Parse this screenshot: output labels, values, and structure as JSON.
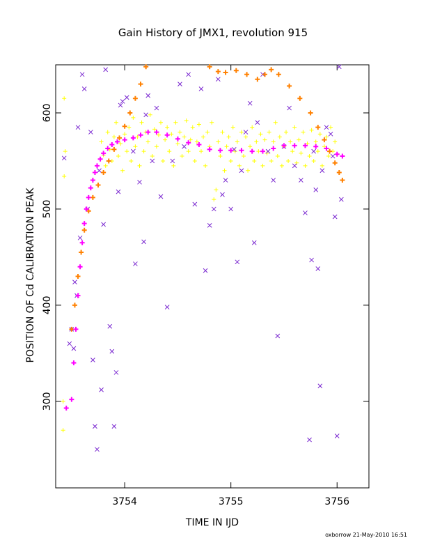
{
  "chart_data": {
    "type": "scatter",
    "title": "Gain History of JMX1, revolution 915",
    "xlabel": "TIME IN IJD",
    "ylabel": "POSITION OF Cd CALIBRATION PEAK",
    "xlim": [
      3753.35,
      3756.3
    ],
    "ylim": [
      210,
      650
    ],
    "x_ticks": [
      3754,
      3755,
      3756
    ],
    "y_ticks": [
      300,
      400,
      500,
      600
    ],
    "footer": "oxborrow 21-May-2010 16:51",
    "grid": false,
    "colors": {
      "yellow_series": "#ffff00",
      "magenta_series": "#ff00ff",
      "orange_series": "#ff8000",
      "purple_series": "#7a28d0"
    },
    "series": [
      {
        "key": "magenta",
        "marker": "plus",
        "values": [
          [
            3753.45,
            293
          ],
          [
            3753.5,
            302
          ],
          [
            3753.52,
            340
          ],
          [
            3753.54,
            375
          ],
          [
            3753.56,
            410
          ],
          [
            3753.58,
            440
          ],
          [
            3753.6,
            465
          ],
          [
            3753.62,
            485
          ],
          [
            3753.64,
            500
          ],
          [
            3753.66,
            512
          ],
          [
            3753.68,
            522
          ],
          [
            3753.7,
            530
          ],
          [
            3753.72,
            538
          ],
          [
            3753.74,
            545
          ],
          [
            3753.77,
            552
          ],
          [
            3753.8,
            558
          ],
          [
            3753.84,
            563
          ],
          [
            3753.88,
            567
          ],
          [
            3753.93,
            570
          ],
          [
            3754.0,
            572
          ],
          [
            3754.08,
            574
          ],
          [
            3754.15,
            577
          ],
          [
            3754.22,
            580
          ],
          [
            3754.3,
            580
          ],
          [
            3754.4,
            577
          ],
          [
            3754.5,
            573
          ],
          [
            3754.6,
            569
          ],
          [
            3754.7,
            567
          ],
          [
            3754.8,
            562
          ],
          [
            3754.9,
            561
          ],
          [
            3755.0,
            561
          ],
          [
            3755.1,
            561
          ],
          [
            3755.2,
            560
          ],
          [
            3755.3,
            560
          ],
          [
            3755.4,
            563
          ],
          [
            3755.5,
            566
          ],
          [
            3755.6,
            566
          ],
          [
            3755.7,
            566
          ],
          [
            3755.8,
            565
          ],
          [
            3755.9,
            563
          ],
          [
            3756.0,
            557
          ],
          [
            3756.05,
            555
          ]
        ]
      },
      {
        "key": "orange",
        "marker": "plus",
        "values": [
          [
            3753.5,
            375
          ],
          [
            3753.53,
            400
          ],
          [
            3753.56,
            430
          ],
          [
            3753.59,
            455
          ],
          [
            3753.62,
            478
          ],
          [
            3753.66,
            498
          ],
          [
            3753.7,
            512
          ],
          [
            3753.75,
            525
          ],
          [
            3753.8,
            538
          ],
          [
            3753.85,
            550
          ],
          [
            3753.9,
            562
          ],
          [
            3753.95,
            574
          ],
          [
            3754.0,
            586
          ],
          [
            3754.05,
            600
          ],
          [
            3754.1,
            615
          ],
          [
            3754.15,
            630
          ],
          [
            3754.2,
            648
          ],
          [
            3754.8,
            648
          ],
          [
            3754.88,
            643
          ],
          [
            3754.95,
            642
          ],
          [
            3755.05,
            644
          ],
          [
            3755.15,
            640
          ],
          [
            3755.25,
            635
          ],
          [
            3755.32,
            640
          ],
          [
            3755.38,
            645
          ],
          [
            3755.45,
            640
          ],
          [
            3755.55,
            628
          ],
          [
            3755.65,
            615
          ],
          [
            3755.75,
            600
          ],
          [
            3755.82,
            585
          ],
          [
            3755.88,
            572
          ],
          [
            3755.93,
            560
          ],
          [
            3755.98,
            548
          ],
          [
            3756.02,
            538
          ],
          [
            3756.05,
            530
          ]
        ]
      },
      {
        "key": "yellow",
        "marker": "plus",
        "values": [
          [
            3753.42,
            270
          ],
          [
            3753.42,
            300
          ],
          [
            3753.43,
            534
          ],
          [
            3753.44,
            560
          ],
          [
            3753.43,
            615
          ],
          [
            3753.78,
            570
          ],
          [
            3753.8,
            556
          ],
          [
            3753.82,
            545
          ],
          [
            3753.84,
            580
          ],
          [
            3753.86,
            562
          ],
          [
            3753.88,
            550
          ],
          [
            3753.9,
            575
          ],
          [
            3753.92,
            590
          ],
          [
            3753.94,
            555
          ],
          [
            3753.96,
            568
          ],
          [
            3753.98,
            540
          ],
          [
            3754.0,
            578
          ],
          [
            3754.02,
            560
          ],
          [
            3754.04,
            585
          ],
          [
            3754.06,
            550
          ],
          [
            3754.08,
            595
          ],
          [
            3754.1,
            565
          ],
          [
            3754.12,
            575
          ],
          [
            3754.14,
            545
          ],
          [
            3754.16,
            590
          ],
          [
            3754.18,
            560
          ],
          [
            3754.2,
            580
          ],
          [
            3754.22,
            570
          ],
          [
            3754.24,
            598
          ],
          [
            3754.26,
            555
          ],
          [
            3754.28,
            583
          ],
          [
            3754.3,
            565
          ],
          [
            3754.32,
            577
          ],
          [
            3754.34,
            590
          ],
          [
            3754.36,
            550
          ],
          [
            3754.38,
            572
          ],
          [
            3754.4,
            585
          ],
          [
            3754.42,
            560
          ],
          [
            3754.44,
            578
          ],
          [
            3754.46,
            545
          ],
          [
            3754.48,
            590
          ],
          [
            3754.5,
            568
          ],
          [
            3754.52,
            580
          ],
          [
            3754.54,
            555
          ],
          [
            3754.56,
            575
          ],
          [
            3754.58,
            592
          ],
          [
            3754.6,
            560
          ],
          [
            3754.62,
            572
          ],
          [
            3754.64,
            585
          ],
          [
            3754.66,
            550
          ],
          [
            3754.68,
            570
          ],
          [
            3754.7,
            588
          ],
          [
            3754.72,
            560
          ],
          [
            3754.74,
            575
          ],
          [
            3754.76,
            545
          ],
          [
            3754.78,
            580
          ],
          [
            3754.8,
            565
          ],
          [
            3754.82,
            590
          ],
          [
            3754.84,
            510
          ],
          [
            3754.86,
            520
          ],
          [
            3754.88,
            570
          ],
          [
            3754.9,
            555
          ],
          [
            3754.92,
            580
          ],
          [
            3754.94,
            540
          ],
          [
            3754.96,
            565
          ],
          [
            3754.98,
            575
          ],
          [
            3755.0,
            550
          ],
          [
            3755.02,
            585
          ],
          [
            3755.04,
            560
          ],
          [
            3755.06,
            570
          ],
          [
            3755.08,
            545
          ],
          [
            3755.1,
            580
          ],
          [
            3755.12,
            555
          ],
          [
            3755.14,
            575
          ],
          [
            3755.16,
            540
          ],
          [
            3755.18,
            565
          ],
          [
            3755.2,
            585
          ],
          [
            3755.22,
            550
          ],
          [
            3755.24,
            570
          ],
          [
            3755.26,
            560
          ],
          [
            3755.28,
            578
          ],
          [
            3755.3,
            545
          ],
          [
            3755.32,
            572
          ],
          [
            3755.34,
            558
          ],
          [
            3755.36,
            580
          ],
          [
            3755.38,
            550
          ],
          [
            3755.4,
            570
          ],
          [
            3755.42,
            590
          ],
          [
            3755.44,
            555
          ],
          [
            3755.46,
            575
          ],
          [
            3755.48,
            545
          ],
          [
            3755.5,
            565
          ],
          [
            3755.52,
            580
          ],
          [
            3755.54,
            550
          ],
          [
            3755.56,
            570
          ],
          [
            3755.58,
            560
          ],
          [
            3755.6,
            585
          ],
          [
            3755.62,
            548
          ],
          [
            3755.64,
            572
          ],
          [
            3755.66,
            558
          ],
          [
            3755.68,
            580
          ],
          [
            3755.7,
            545
          ],
          [
            3755.72,
            568
          ],
          [
            3755.74,
            555
          ],
          [
            3755.76,
            582
          ],
          [
            3755.78,
            550
          ],
          [
            3755.8,
            570
          ],
          [
            3755.82,
            560
          ],
          [
            3755.84,
            578
          ],
          [
            3755.86,
            545
          ],
          [
            3755.88,
            565
          ],
          [
            3755.9,
            575
          ],
          [
            3755.92,
            555
          ],
          [
            3755.94,
            585
          ],
          [
            3755.96,
            560
          ],
          [
            3755.98,
            570
          ]
        ]
      },
      {
        "key": "purple",
        "marker": "x",
        "values": [
          [
            3753.43,
            553
          ],
          [
            3753.48,
            360
          ],
          [
            3753.5,
            375
          ],
          [
            3753.52,
            355
          ],
          [
            3753.53,
            424
          ],
          [
            3753.55,
            410
          ],
          [
            3753.56,
            585
          ],
          [
            3753.58,
            470
          ],
          [
            3753.6,
            640
          ],
          [
            3753.62,
            625
          ],
          [
            3753.65,
            500
          ],
          [
            3753.68,
            580
          ],
          [
            3753.7,
            343
          ],
          [
            3753.72,
            274
          ],
          [
            3753.74,
            250
          ],
          [
            3753.76,
            540
          ],
          [
            3753.78,
            312
          ],
          [
            3753.8,
            484
          ],
          [
            3753.82,
            645
          ],
          [
            3753.86,
            378
          ],
          [
            3753.88,
            352
          ],
          [
            3753.9,
            274
          ],
          [
            3753.92,
            330
          ],
          [
            3753.94,
            518
          ],
          [
            3753.96,
            608
          ],
          [
            3753.98,
            612
          ],
          [
            3754.02,
            616
          ],
          [
            3754.08,
            560
          ],
          [
            3754.1,
            443
          ],
          [
            3754.14,
            528
          ],
          [
            3754.18,
            466
          ],
          [
            3754.2,
            598
          ],
          [
            3754.22,
            618
          ],
          [
            3754.26,
            550
          ],
          [
            3754.3,
            605
          ],
          [
            3754.34,
            513
          ],
          [
            3754.4,
            398
          ],
          [
            3754.45,
            550
          ],
          [
            3754.52,
            630
          ],
          [
            3754.56,
            565
          ],
          [
            3754.6,
            640
          ],
          [
            3754.66,
            505
          ],
          [
            3754.72,
            625
          ],
          [
            3754.76,
            436
          ],
          [
            3754.8,
            483
          ],
          [
            3754.84,
            500
          ],
          [
            3754.88,
            635
          ],
          [
            3754.92,
            515
          ],
          [
            3754.95,
            530
          ],
          [
            3755.0,
            500
          ],
          [
            3755.03,
            562
          ],
          [
            3755.06,
            445
          ],
          [
            3755.1,
            540
          ],
          [
            3755.14,
            580
          ],
          [
            3755.18,
            610
          ],
          [
            3755.22,
            465
          ],
          [
            3755.25,
            590
          ],
          [
            3755.3,
            640
          ],
          [
            3755.35,
            560
          ],
          [
            3755.4,
            530
          ],
          [
            3755.44,
            368
          ],
          [
            3755.5,
            565
          ],
          [
            3755.55,
            605
          ],
          [
            3755.6,
            545
          ],
          [
            3755.66,
            530
          ],
          [
            3755.7,
            496
          ],
          [
            3755.74,
            260
          ],
          [
            3755.76,
            447
          ],
          [
            3755.78,
            560
          ],
          [
            3755.8,
            520
          ],
          [
            3755.82,
            438
          ],
          [
            3755.84,
            316
          ],
          [
            3755.86,
            540
          ],
          [
            3755.9,
            585
          ],
          [
            3755.94,
            578
          ],
          [
            3755.96,
            555
          ],
          [
            3755.98,
            492
          ],
          [
            3756.0,
            264
          ],
          [
            3756.02,
            648
          ],
          [
            3756.04,
            510
          ]
        ]
      }
    ]
  }
}
